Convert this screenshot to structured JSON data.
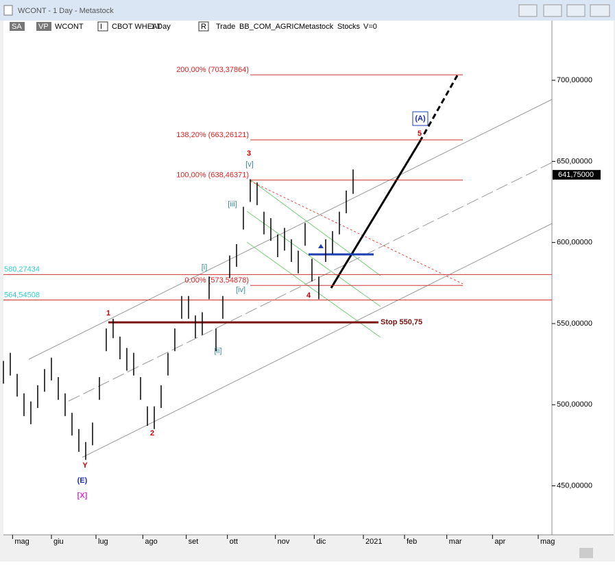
{
  "window_title": "WCONT - 1 Day - Metastock",
  "toolbar": [
    "SA",
    "VP",
    "WCONT",
    "I",
    "CBOT WHEAT",
    "1 Day",
    "R",
    "Trade",
    "BB_COM_AGRIC",
    "Metastock",
    "Stocks",
    "V=0"
  ],
  "chart_data": {
    "type": "ohlc",
    "x": [
      0,
      3,
      6,
      9,
      12,
      15,
      18,
      21,
      24,
      27,
      30,
      33,
      36,
      39,
      42,
      45,
      48,
      51,
      54,
      57,
      60,
      63,
      66,
      69,
      72,
      75,
      78,
      81,
      84,
      87,
      90,
      93,
      96,
      99,
      102,
      105,
      108,
      111,
      114,
      117,
      120,
      123,
      126,
      129,
      132,
      135,
      138,
      141,
      144,
      147,
      150,
      153
    ],
    "high": [
      527,
      532,
      519,
      507,
      502,
      512,
      522,
      529,
      517,
      507,
      495,
      485,
      477,
      489,
      517,
      547,
      553,
      542,
      535,
      532,
      517,
      499,
      499,
      512,
      532,
      547,
      567,
      567,
      555,
      557,
      579,
      547,
      567,
      592,
      599,
      622,
      639,
      637,
      619,
      615,
      605,
      609,
      602,
      595,
      612,
      590,
      579,
      602,
      607,
      619,
      632,
      645
    ],
    "low": [
      513,
      518,
      505,
      493,
      488,
      498,
      508,
      515,
      503,
      493,
      481,
      471,
      466,
      475,
      503,
      533,
      541,
      528,
      521,
      518,
      503,
      487,
      485,
      498,
      518,
      533,
      553,
      553,
      541,
      543,
      565,
      533,
      553,
      578,
      585,
      608,
      625,
      623,
      605,
      601,
      591,
      595,
      588,
      581,
      598,
      576,
      565,
      588,
      593,
      605,
      618,
      630
    ],
    "color": "#000000",
    "xlim": [
      0,
      240
    ],
    "xticks": [
      {
        "value": 4,
        "label": "mag"
      },
      {
        "value": 21,
        "label": "giu"
      },
      {
        "value": 40.5,
        "label": "lug"
      },
      {
        "value": 61,
        "label": "ago"
      },
      {
        "value": 80,
        "label": "set"
      },
      {
        "value": 98,
        "label": "ott"
      },
      {
        "value": 119,
        "label": "nov"
      },
      {
        "value": 136,
        "label": "dic"
      },
      {
        "value": 157.5,
        "label": "2021"
      },
      {
        "value": 175.5,
        "label": "feb"
      },
      {
        "value": 194,
        "label": "mar"
      },
      {
        "value": 214,
        "label": "apr"
      },
      {
        "value": 234,
        "label": "mag"
      }
    ],
    "ylim": [
      419.8,
      727.5
    ],
    "yticks": [
      {
        "value": 450,
        "label": "450,00000"
      },
      {
        "value": 500,
        "label": "500,00000"
      },
      {
        "value": 550,
        "label": "550,00000"
      },
      {
        "value": 600,
        "label": "600,00000"
      },
      {
        "value": 650,
        "label": "650,00000"
      },
      {
        "value": 700,
        "label": "700,00000"
      }
    ],
    "last_price": {
      "value": 641.75,
      "label": "641,75000"
    },
    "fib_levels": [
      {
        "value": 703.37864,
        "label": "200,00% (703,37864)"
      },
      {
        "value": 663.26121,
        "label": "138,20% (663,26121)"
      },
      {
        "value": 638.46371,
        "label": "100,00% (638,46371)"
      },
      {
        "value": 573.54878,
        "label": "0,00% (573,54878)"
      }
    ],
    "levels": [
      {
        "value": 580.27434,
        "label": "580,27434"
      },
      {
        "value": 564.54508,
        "label": "564,54508"
      }
    ],
    "stop": {
      "value": 550.75,
      "label": "Stop 550,75"
    },
    "annotations": [
      "1",
      "2",
      "3",
      "4",
      "5",
      "Y",
      "(E)",
      "[X]",
      "(A)",
      "[i]",
      "[ii]",
      "[iii]",
      "[iv]",
      "[v]"
    ]
  }
}
